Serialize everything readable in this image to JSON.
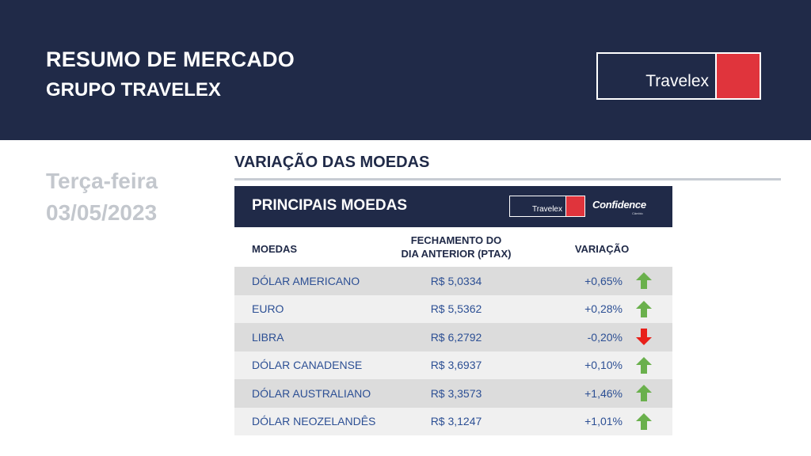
{
  "header": {
    "title": "RESUMO DE MERCADO",
    "subtitle": "GRUPO TRAVELEX",
    "logo_text": "Travelex"
  },
  "date": {
    "weekday": "Terça-feira",
    "value": "03/05/2023"
  },
  "section": {
    "title": "VARIAÇÃO DAS MOEDAS"
  },
  "panel": {
    "title": "PRINCIPAIS MOEDAS",
    "logo_text": "Travelex",
    "partner_logo": "Confidence",
    "partner_logo_sub": "Câmbio",
    "columns": {
      "name": "MOEDAS",
      "ptax_line1": "FECHAMENTO DO",
      "ptax_line2": "DIA ANTERIOR (PTAX)",
      "variation": "VARIAÇÃO"
    },
    "rows": [
      {
        "name": "DÓLAR AMERICANO",
        "ptax": "R$ 5,0334",
        "variation": "+0,65%",
        "direction": "up"
      },
      {
        "name": "EURO",
        "ptax": "R$ 5,5362",
        "variation": "+0,28%",
        "direction": "up"
      },
      {
        "name": "LIBRA",
        "ptax": "R$ 6,2792",
        "variation": "-0,20%",
        "direction": "down"
      },
      {
        "name": "DÓLAR CANADENSE",
        "ptax": "R$ 3,6937",
        "variation": "+0,10%",
        "direction": "up"
      },
      {
        "name": "DÓLAR AUSTRALIANO",
        "ptax": "R$ 3,3573",
        "variation": "+1,46%",
        "direction": "up"
      },
      {
        "name": "DÓLAR NEOZELANDÊS",
        "ptax": "R$ 3,1247",
        "variation": "+1,01%",
        "direction": "up"
      }
    ]
  },
  "colors": {
    "navy": "#202a48",
    "brand_red": "#e0343c",
    "up_arrow": "#6ab04c",
    "down_arrow": "#e8201a",
    "value_text": "#2c4f94"
  }
}
